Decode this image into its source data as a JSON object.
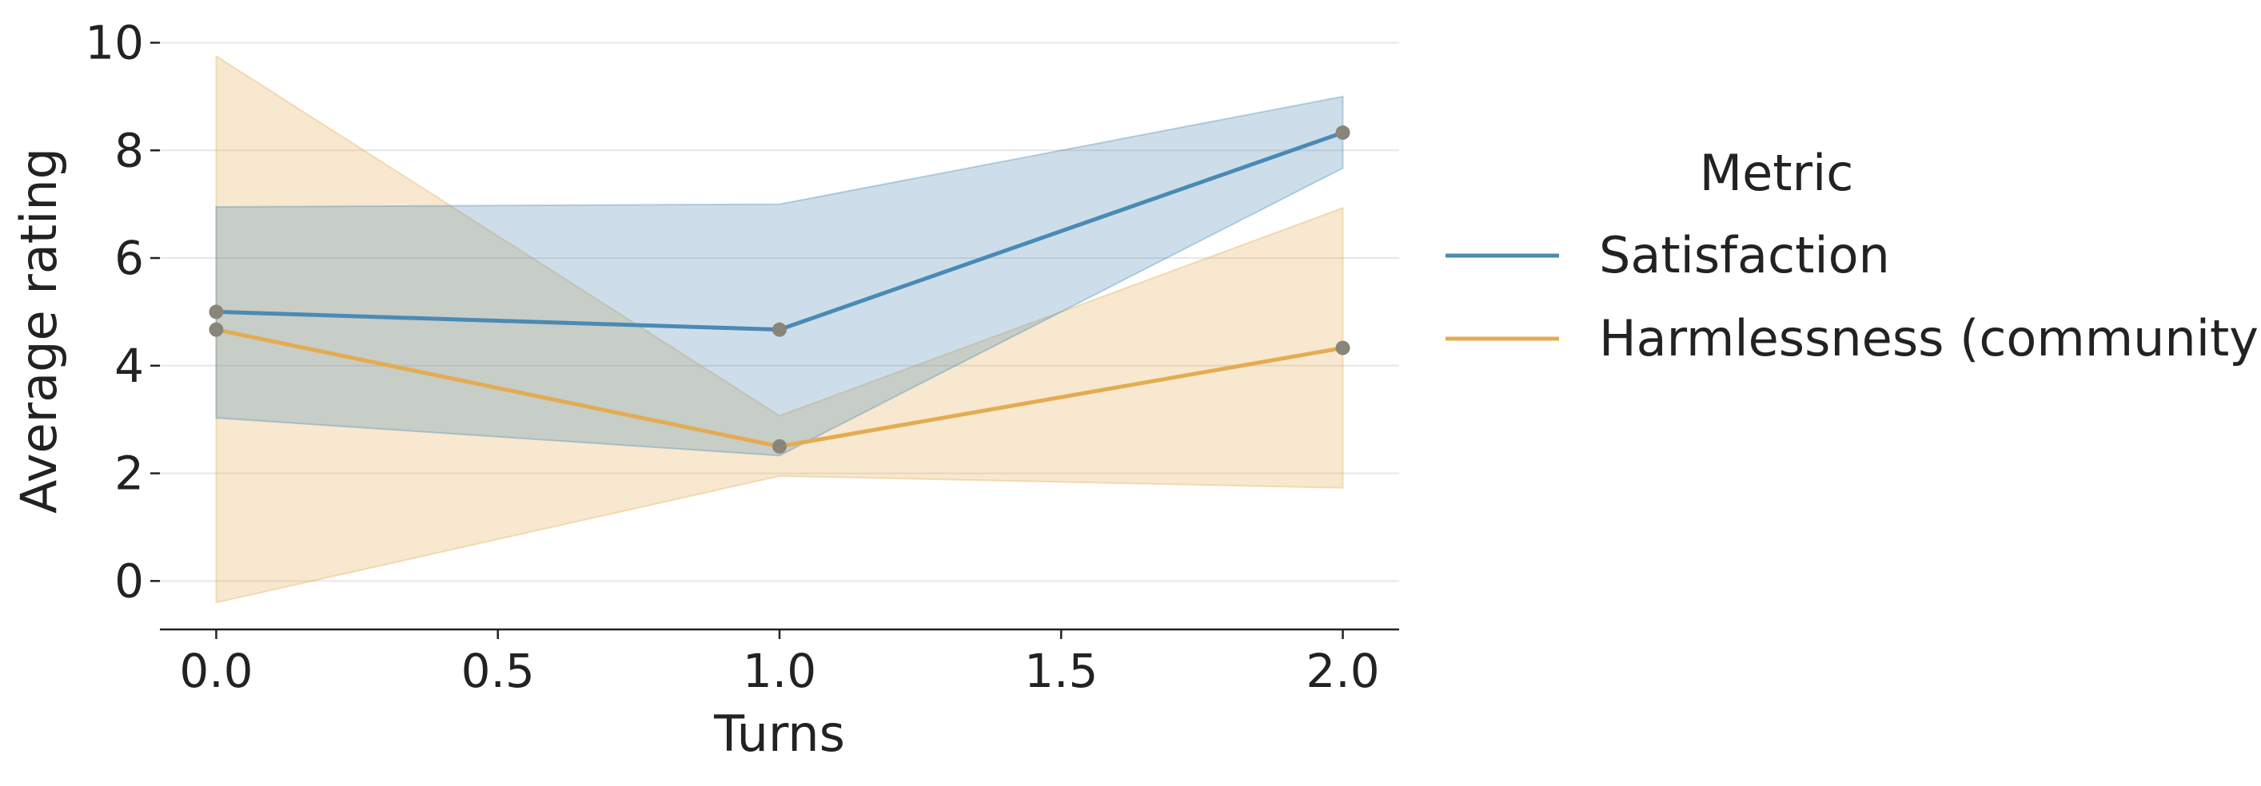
{
  "chart_data": {
    "type": "line",
    "xlabel": "Turns",
    "ylabel": "Average rating",
    "xlim": [
      -0.1,
      2.1
    ],
    "ylim": [
      -0.9,
      10.2
    ],
    "xticks": [
      "0.0",
      "0.5",
      "1.0",
      "1.5",
      "2.0"
    ],
    "xtick_values": [
      0.0,
      0.5,
      1.0,
      1.5,
      2.0
    ],
    "yticks": [
      "0",
      "2",
      "4",
      "6",
      "8",
      "10"
    ],
    "ytick_values": [
      0,
      2,
      4,
      6,
      8,
      10
    ],
    "grid": "horizontal",
    "legend": {
      "title": "Metric",
      "placement": "right"
    },
    "x": [
      0.0,
      1.0,
      2.0
    ],
    "series": [
      {
        "name": "Satisfaction",
        "color": "#4a8ab5",
        "values": [
          5.0,
          4.67,
          8.33
        ],
        "ci_lower": [
          3.03,
          2.33,
          7.67
        ],
        "ci_upper": [
          6.95,
          7.0,
          9.0
        ]
      },
      {
        "name": "Harmlessness (community)",
        "color": "#e3ac52",
        "values": [
          4.67,
          2.5,
          4.33
        ],
        "ci_lower": [
          -0.4,
          1.95,
          1.73
        ],
        "ci_upper": [
          9.75,
          3.07,
          6.93
        ]
      }
    ],
    "marker_color": "#8a8579"
  }
}
